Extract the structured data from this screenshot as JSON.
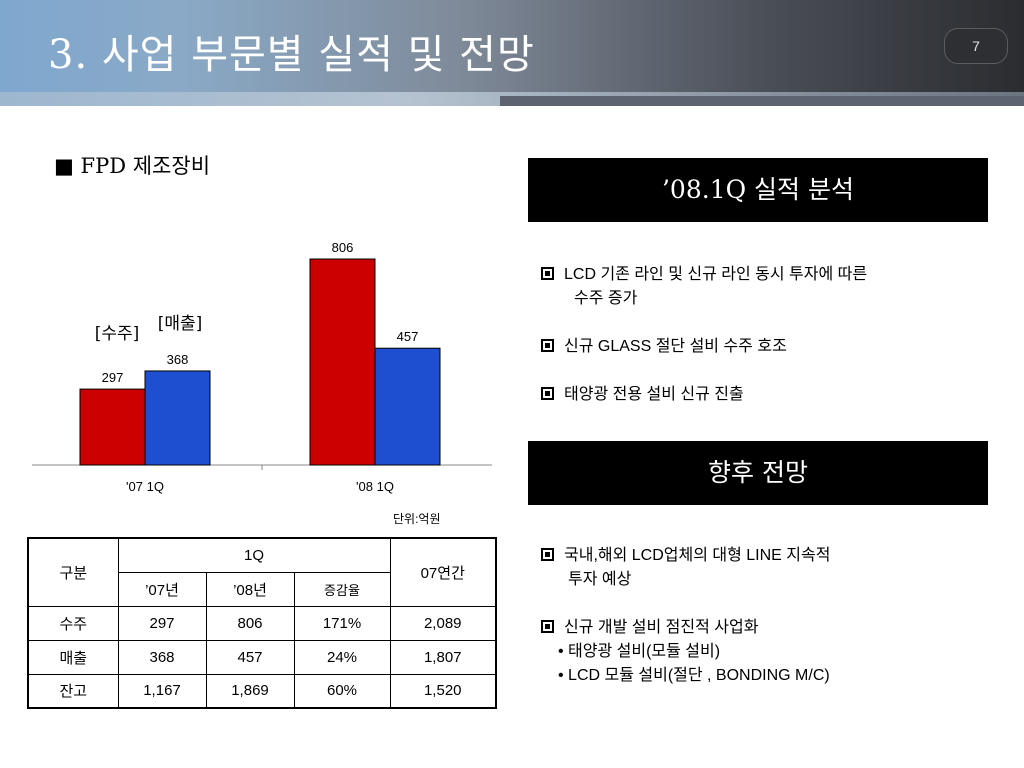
{
  "header": {
    "title": "3. 사업 부문별 실적 및 전망",
    "page_number": "7"
  },
  "section_label": "■ FPD 제조장비",
  "unit_label": "단위:억원",
  "chart_data": {
    "type": "bar",
    "categories": [
      "'07 1Q",
      "'08 1Q"
    ],
    "series": [
      {
        "name": "[수주]",
        "values": [
          297,
          806
        ],
        "color": "#cc0000"
      },
      {
        "name": "[매출]",
        "values": [
          368,
          457
        ],
        "color": "#1f4fd1"
      }
    ],
    "data_labels": [
      [
        "297",
        "806"
      ],
      [
        "368",
        "457"
      ]
    ],
    "ylim": [
      0,
      900
    ],
    "grid": false,
    "legend": "labels above first category bars"
  },
  "table": {
    "header_rowspan_label": "구분",
    "group_label": "1Q",
    "annual_label": "07연간",
    "sub_headers": [
      "’07년",
      "’08년",
      "증감율"
    ],
    "rows": [
      {
        "label": "수주",
        "y07": "297",
        "y08": "806",
        "rate": "171%",
        "annual": "2,089"
      },
      {
        "label": "매출",
        "y07": "368",
        "y08": "457",
        "rate": "24%",
        "annual": "1,807"
      },
      {
        "label": "잔고",
        "y07": "1,167",
        "y08": "1,869",
        "rate": "60%",
        "annual": "1,520"
      }
    ]
  },
  "analysis": {
    "title": "’08.1Q 실적 분석",
    "bullets": [
      {
        "line1": "LCD 기존 라인 및 신규 라인 동시 투자에 따른",
        "line2": "수주 증가"
      },
      {
        "line1": "신규 GLASS 절단 설비 수주 호조",
        "line2": ""
      },
      {
        "line1": "태양광 전용 설비 신규 진출",
        "line2": ""
      }
    ]
  },
  "outlook": {
    "title": "향후 전망",
    "bullet1_line1": "국내,해외 LCD업체의 대형 LINE 지속적",
    "bullet1_line2": "투자 예상",
    "bullet2": "신규 개발 설비 점진적 사업화",
    "sub_items": [
      "• 태양광 설비(모듈 설비)",
      "• LCD 모듈 설비(절단 , BONDING M/C)"
    ]
  },
  "colors": {
    "order_bar": "#cc0000",
    "sales_bar": "#1f4fd1",
    "title_box": "#000000"
  }
}
